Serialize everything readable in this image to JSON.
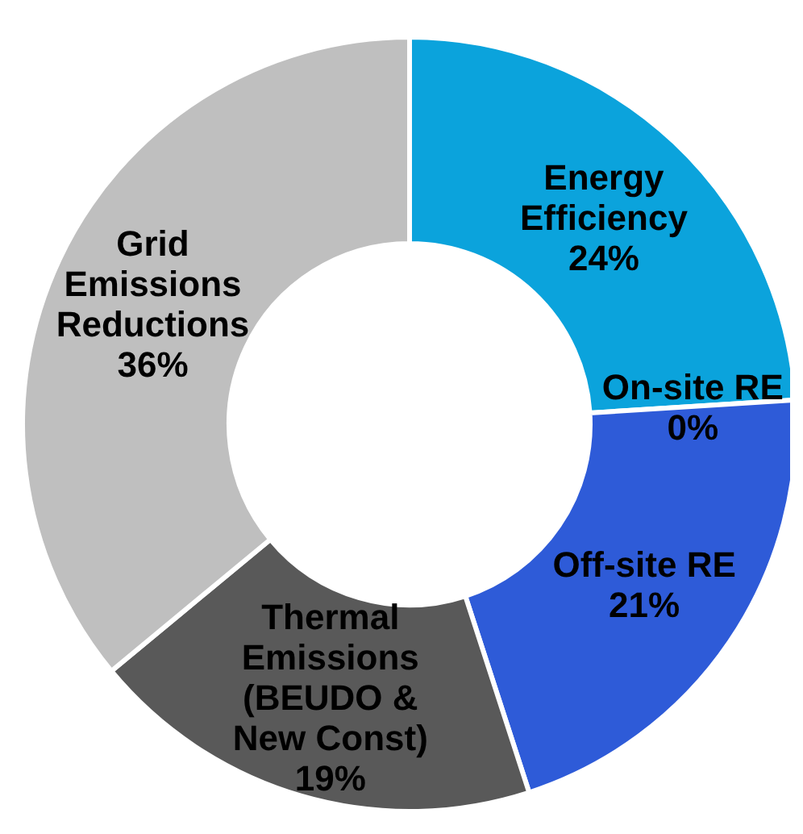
{
  "chart_data": {
    "type": "donut",
    "categories": [
      "Energy Efficiency",
      "On-site RE",
      "Off-site RE",
      "Thermal Emissions (BEUDO & New Const)",
      "Grid Emissions Reductions"
    ],
    "values": [
      24,
      0,
      21,
      19,
      36
    ],
    "value_labels": [
      "24%",
      "0%",
      "21%",
      "19%",
      "36%"
    ],
    "colors": [
      "#0ba3dc",
      "#ed7d31",
      "#2e5bd8",
      "#595959",
      "#bfbfbf"
    ],
    "legend": false
  }
}
